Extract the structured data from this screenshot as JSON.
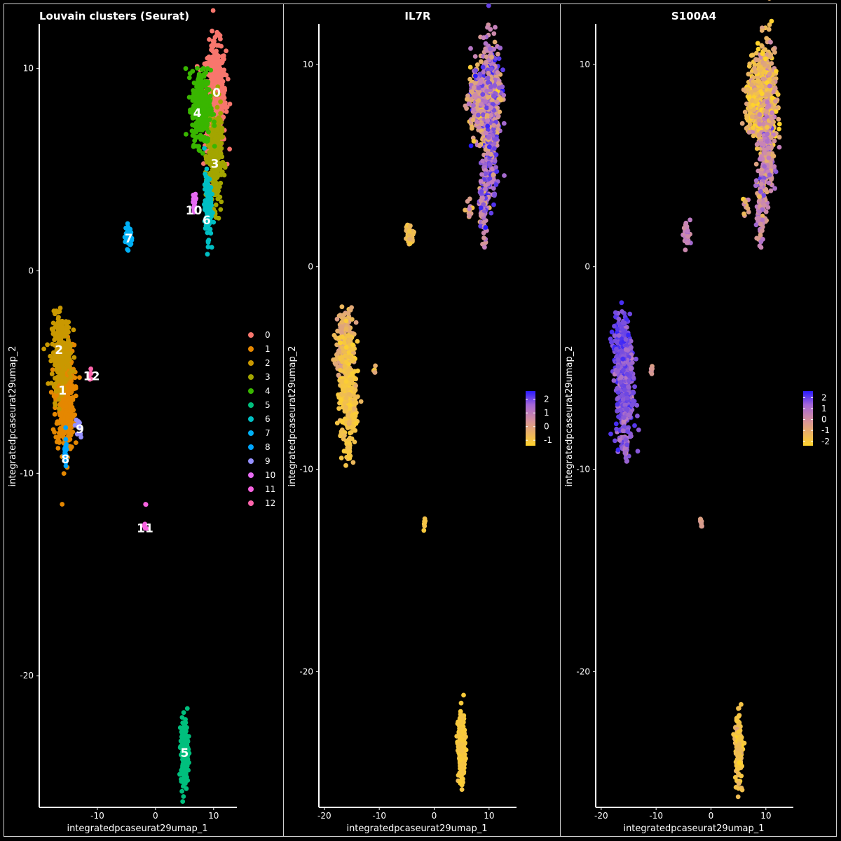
{
  "chart_data": [
    {
      "type": "scatter",
      "title": "Louvain clusters (Seurat)",
      "xlabel": "integratedpcaseurat29umap_1",
      "ylabel": "integratedpcaseurat29umap_2",
      "xlim": [
        -20,
        14
      ],
      "ylim": [
        -26.5,
        12.2
      ],
      "xticks": [
        -10,
        0,
        10
      ],
      "yticks": [
        10,
        0,
        -10,
        -20
      ],
      "legend": {
        "position": "right",
        "title": "",
        "entries": [
          "0",
          "1",
          "2",
          "3",
          "4",
          "5",
          "6",
          "7",
          "8",
          "9",
          "10",
          "11",
          "12"
        ]
      },
      "series": [
        {
          "name": "0",
          "color": "#F8766D",
          "clusters": [
            {
              "cx": 10.3,
              "cy": 8.6,
              "sx": 0.9,
              "sy": 1.3,
              "n": 520
            }
          ],
          "label_at": [
            10.5,
            8.8
          ]
        },
        {
          "name": "1",
          "color": "#E58700",
          "clusters": [
            {
              "cx": -15.6,
              "cy": -6.3,
              "sx": 0.8,
              "sy": 1.3,
              "n": 420
            }
          ],
          "label_at": [
            -16.0,
            -5.9
          ]
        },
        {
          "name": "2",
          "color": "#C99800",
          "clusters": [
            {
              "cx": -16.2,
              "cy": -4.0,
              "sx": 0.8,
              "sy": 0.9,
              "n": 260
            }
          ],
          "label_at": [
            -16.6,
            -3.9
          ]
        },
        {
          "name": "3",
          "color": "#A3A500",
          "clusters": [
            {
              "cx": 10.2,
              "cy": 5.6,
              "sx": 0.6,
              "sy": 1.2,
              "n": 320
            }
          ],
          "label_at": [
            10.2,
            5.3
          ]
        },
        {
          "name": "4",
          "color": "#39B600",
          "clusters": [
            {
              "cx": 7.9,
              "cy": 8.1,
              "sx": 0.8,
              "sy": 0.9,
              "n": 340
            }
          ],
          "label_at": [
            7.2,
            7.8
          ]
        },
        {
          "name": "5",
          "color": "#00BF7D",
          "clusters": [
            {
              "cx": 5.0,
              "cy": -23.8,
              "sx": 0.3,
              "sy": 0.8,
              "n": 220
            }
          ],
          "label_at": [
            5.0,
            -23.8
          ]
        },
        {
          "name": "6",
          "color": "#00BFC4",
          "clusters": [
            {
              "cx": 9.0,
              "cy": 3.2,
              "sx": 0.3,
              "sy": 0.8,
              "n": 130
            }
          ],
          "label_at": [
            8.8,
            2.5
          ]
        },
        {
          "name": "7",
          "color": "#00B0F6",
          "clusters": [
            {
              "cx": -4.6,
              "cy": 1.7,
              "sx": 0.3,
              "sy": 0.3,
              "n": 55
            }
          ],
          "label_at": [
            -4.6,
            1.6
          ]
        },
        {
          "name": "8",
          "color": "#00A5FF",
          "clusters": [
            {
              "cx": -15.5,
              "cy": -9.0,
              "sx": 0.12,
              "sy": 0.35,
              "n": 30
            }
          ],
          "label_at": [
            -15.5,
            -9.3
          ]
        },
        {
          "name": "9",
          "color": "#9590FF",
          "clusters": [
            {
              "cx": -13.3,
              "cy": -7.8,
              "sx": 0.3,
              "sy": 0.25,
              "n": 10
            }
          ],
          "label_at": [
            -13.0,
            -7.8
          ]
        },
        {
          "name": "10",
          "color": "#E76BF3",
          "clusters": [
            {
              "cx": 6.6,
              "cy": 3.2,
              "sx": 0.25,
              "sy": 0.3,
              "n": 12
            }
          ],
          "label_at": [
            6.6,
            3.0
          ]
        },
        {
          "name": "11",
          "color": "#F763E0",
          "clusters": [
            {
              "cx": -1.8,
              "cy": -12.6,
              "sx": 0.1,
              "sy": 0.15,
              "n": 8
            },
            {
              "cx": -1.7,
              "cy": -11.5,
              "sx": 0.05,
              "sy": 0.05,
              "n": 2
            }
          ],
          "label_at": [
            -1.8,
            -12.7
          ]
        },
        {
          "name": "12",
          "color": "#FF65AC",
          "clusters": [
            {
              "cx": -11.2,
              "cy": -5.2,
              "sx": 0.12,
              "sy": 0.15,
              "n": 6
            }
          ],
          "label_at": [
            -11.0,
            -5.2
          ]
        }
      ]
    },
    {
      "type": "scatter",
      "title": "IL7R",
      "xlabel": "integratedpcaseurat29umap_1",
      "ylabel": "integratedpcaseurat29umap_2",
      "xlim": [
        -21,
        15
      ],
      "ylim": [
        -26.7,
        12.0
      ],
      "xticks": [
        -20,
        -10,
        0,
        10
      ],
      "yticks": [
        10,
        0,
        -10,
        -20
      ],
      "colorbar": {
        "ticks": [
          2,
          1,
          0,
          -1
        ],
        "range": [
          -1.4,
          2.6
        ],
        "low_color": "#FFD32B",
        "mid_color": "#C47FC0",
        "high_color": "#2A1BFF"
      },
      "groups": [
        {
          "cx": 10.3,
          "cy": 8.6,
          "sx": 0.9,
          "sy": 1.3,
          "n": 360,
          "mean": 0.8,
          "spread": 0.9
        },
        {
          "cx": 7.9,
          "cy": 8.1,
          "sx": 0.8,
          "sy": 0.9,
          "n": 220,
          "mean": 0.4,
          "spread": 0.9
        },
        {
          "cx": 10.2,
          "cy": 5.6,
          "sx": 0.6,
          "sy": 1.2,
          "n": 220,
          "mean": 1.2,
          "spread": 0.7
        },
        {
          "cx": 9.0,
          "cy": 3.0,
          "sx": 0.35,
          "sy": 0.9,
          "n": 90,
          "mean": 1.0,
          "spread": 0.7
        },
        {
          "cx": 6.4,
          "cy": 3.0,
          "sx": 0.3,
          "sy": 0.3,
          "n": 12,
          "mean": 0.0,
          "spread": 0.6
        },
        {
          "cx": -4.4,
          "cy": 1.6,
          "sx": 0.3,
          "sy": 0.3,
          "n": 45,
          "mean": -0.8,
          "spread": 0.2
        },
        {
          "cx": -16.2,
          "cy": -4.0,
          "sx": 0.8,
          "sy": 0.9,
          "n": 200,
          "mean": -0.4,
          "spread": 0.3
        },
        {
          "cx": -15.6,
          "cy": -6.3,
          "sx": 0.8,
          "sy": 1.3,
          "n": 320,
          "mean": -1.0,
          "spread": 0.2
        },
        {
          "cx": -15.5,
          "cy": -9.0,
          "sx": 0.12,
          "sy": 0.35,
          "n": 25,
          "mean": -1.0,
          "spread": 0.1
        },
        {
          "cx": -10.8,
          "cy": -5.1,
          "sx": 0.12,
          "sy": 0.12,
          "n": 6,
          "mean": -0.6,
          "spread": 0.2
        },
        {
          "cx": -1.8,
          "cy": -12.6,
          "sx": 0.1,
          "sy": 0.15,
          "n": 8,
          "mean": -1.0,
          "spread": 0.1
        },
        {
          "cx": 5.0,
          "cy": -23.8,
          "sx": 0.3,
          "sy": 0.8,
          "n": 200,
          "mean": -1.1,
          "spread": 0.1
        }
      ]
    },
    {
      "type": "scatter",
      "title": "S100A4",
      "xlabel": "integratedpcaseurat29umap_1",
      "ylabel": "integratedpcaseurat29umap_2",
      "xlim": [
        -21,
        15
      ],
      "ylim": [
        -26.7,
        12.0
      ],
      "xticks": [
        -20,
        -10,
        0,
        10
      ],
      "yticks": [
        10,
        0,
        -10,
        -20
      ],
      "colorbar": {
        "ticks": [
          2,
          1,
          0,
          -1,
          -2
        ],
        "range": [
          -2.4,
          2.6
        ],
        "low_color": "#FFD32B",
        "mid_color": "#C47FC0",
        "high_color": "#2A1BFF"
      },
      "groups": [
        {
          "cx": 10.3,
          "cy": 8.6,
          "sx": 0.9,
          "sy": 1.3,
          "n": 360,
          "mean": -1.4,
          "spread": 0.8
        },
        {
          "cx": 7.9,
          "cy": 8.1,
          "sx": 0.8,
          "sy": 0.9,
          "n": 220,
          "mean": -1.6,
          "spread": 0.6
        },
        {
          "cx": 10.2,
          "cy": 5.6,
          "sx": 0.6,
          "sy": 1.2,
          "n": 220,
          "mean": -0.2,
          "spread": 0.8
        },
        {
          "cx": 9.0,
          "cy": 3.0,
          "sx": 0.35,
          "sy": 0.9,
          "n": 90,
          "mean": 0.0,
          "spread": 0.7
        },
        {
          "cx": 6.4,
          "cy": 3.0,
          "sx": 0.3,
          "sy": 0.3,
          "n": 12,
          "mean": -1.0,
          "spread": 0.6
        },
        {
          "cx": -4.4,
          "cy": 1.6,
          "sx": 0.3,
          "sy": 0.3,
          "n": 45,
          "mean": 0.3,
          "spread": 0.4
        },
        {
          "cx": -16.2,
          "cy": -4.0,
          "sx": 0.8,
          "sy": 0.9,
          "n": 200,
          "mean": 1.6,
          "spread": 0.4
        },
        {
          "cx": -15.6,
          "cy": -6.3,
          "sx": 0.8,
          "sy": 1.3,
          "n": 320,
          "mean": 1.3,
          "spread": 0.5
        },
        {
          "cx": -15.5,
          "cy": -9.0,
          "sx": 0.12,
          "sy": 0.35,
          "n": 25,
          "mean": 1.0,
          "spread": 0.4
        },
        {
          "cx": -10.8,
          "cy": -5.1,
          "sx": 0.12,
          "sy": 0.12,
          "n": 6,
          "mean": -0.5,
          "spread": 0.3
        },
        {
          "cx": -1.8,
          "cy": -12.6,
          "sx": 0.1,
          "sy": 0.15,
          "n": 8,
          "mean": -0.7,
          "spread": 0.2
        },
        {
          "cx": 5.0,
          "cy": -23.8,
          "sx": 0.3,
          "sy": 0.8,
          "n": 200,
          "mean": -1.9,
          "spread": 0.3
        }
      ]
    }
  ]
}
